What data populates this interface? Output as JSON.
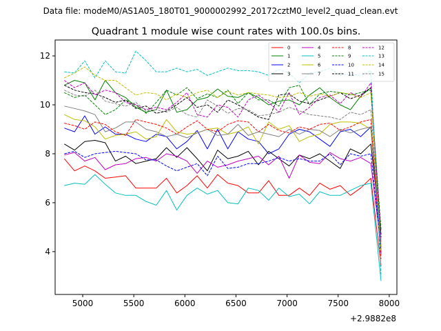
{
  "header": {
    "datafile": "Data file: modeM0/AS1A05_180T01_9000002992_20172cztM0_level2_quad_clean.evt"
  },
  "chart_data": {
    "type": "line",
    "title": "Quadrant 1 module wise count rates with 100.0s bins.",
    "xlabel": "",
    "ylabel": "",
    "x_offset_label": "+2.9882e8",
    "xlim": [
      4730,
      8075
    ],
    "ylim": [
      2.25,
      12.65
    ],
    "xticks": [
      5000,
      5500,
      6000,
      6500,
      7000,
      7500,
      8000
    ],
    "yticks": [
      4,
      6,
      8,
      10,
      12
    ],
    "legend_position": "upper right",
    "x": [
      4820,
      4920,
      5020,
      5120,
      5220,
      5320,
      5420,
      5520,
      5620,
      5720,
      5820,
      5920,
      6020,
      6120,
      6220,
      6320,
      6420,
      6520,
      6620,
      6720,
      6820,
      6920,
      7020,
      7120,
      7220,
      7320,
      7420,
      7520,
      7620,
      7720,
      7820,
      7920
    ],
    "series": [
      {
        "name": "0",
        "color": "#ff0000",
        "dash": "solid",
        "values": [
          7.8,
          7.3,
          7.5,
          7.3,
          7.0,
          7.05,
          7.1,
          6.6,
          6.6,
          6.6,
          7.0,
          6.4,
          6.7,
          7.1,
          6.6,
          7.15,
          6.8,
          6.7,
          6.4,
          6.4,
          6.9,
          6.3,
          6.3,
          6.6,
          6.3,
          6.8,
          6.55,
          6.7,
          6.3,
          6.6,
          7.0,
          3.4
        ]
      },
      {
        "name": "1",
        "color": "#008000",
        "dash": "solid",
        "values": [
          10.8,
          11.0,
          10.9,
          10.2,
          11.0,
          10.5,
          10.3,
          9.9,
          9.7,
          9.8,
          10.6,
          9.7,
          9.8,
          10.2,
          10.3,
          10.65,
          10.35,
          10.3,
          10.5,
          10.3,
          10.0,
          10.15,
          10.2,
          10.0,
          10.4,
          10.7,
          10.3,
          10.0,
          9.8,
          10.35,
          10.7,
          4.0
        ]
      },
      {
        "name": "2",
        "color": "#0000ff",
        "dash": "solid",
        "values": [
          9.05,
          8.9,
          9.55,
          8.8,
          9.1,
          8.8,
          8.8,
          8.6,
          8.5,
          8.8,
          8.7,
          8.2,
          8.5,
          8.95,
          8.2,
          9.0,
          8.2,
          8.9,
          8.6,
          8.5,
          8.0,
          8.2,
          8.8,
          9.0,
          8.9,
          8.6,
          8.3,
          8.9,
          9.0,
          8.7,
          9.1,
          3.9
        ]
      },
      {
        "name": "3",
        "color": "#000000",
        "dash": "solid",
        "values": [
          8.4,
          8.15,
          8.5,
          8.55,
          8.45,
          7.7,
          7.9,
          7.6,
          7.7,
          7.8,
          8.25,
          7.85,
          8.25,
          7.8,
          7.3,
          8.15,
          7.8,
          7.9,
          8.1,
          7.55,
          8.1,
          7.8,
          7.5,
          7.95,
          7.8,
          8.0,
          7.7,
          7.4,
          8.2,
          8.0,
          8.4,
          4.7
        ]
      },
      {
        "name": "4",
        "color": "#c000c0",
        "dash": "solid",
        "values": [
          7.95,
          8.05,
          7.7,
          7.85,
          7.35,
          7.55,
          7.6,
          7.8,
          7.85,
          7.7,
          8.0,
          7.9,
          7.7,
          7.2,
          7.7,
          7.45,
          7.55,
          7.7,
          7.8,
          7.9,
          7.55,
          7.9,
          7.0,
          7.95,
          7.65,
          7.6,
          8.05,
          7.8,
          7.7,
          7.85,
          7.6,
          4.2
        ]
      },
      {
        "name": "5",
        "color": "#00bfbf",
        "dash": "solid",
        "values": [
          6.7,
          6.8,
          6.75,
          7.15,
          6.75,
          6.4,
          6.3,
          6.3,
          6.05,
          5.9,
          6.5,
          5.7,
          6.3,
          6.6,
          6.35,
          6.5,
          6.0,
          5.95,
          6.6,
          6.5,
          6.1,
          6.6,
          6.25,
          6.35,
          5.95,
          6.45,
          6.3,
          6.3,
          6.5,
          6.7,
          6.8,
          2.8
        ]
      },
      {
        "name": "6",
        "color": "#bfbf00",
        "dash": "solid",
        "values": [
          9.6,
          9.4,
          9.35,
          9.1,
          8.6,
          8.75,
          8.8,
          8.9,
          8.6,
          8.7,
          9.4,
          8.9,
          8.8,
          8.85,
          9.0,
          9.05,
          8.8,
          8.9,
          9.1,
          8.4,
          9.3,
          9.0,
          9.15,
          8.5,
          8.7,
          8.8,
          9.2,
          9.3,
          9.3,
          9.25,
          9.0,
          4.4
        ]
      },
      {
        "name": "7",
        "color": "#808080",
        "dash": "solid",
        "values": [
          9.95,
          9.85,
          9.75,
          9.6,
          8.9,
          9.05,
          9.3,
          9.3,
          9.0,
          8.9,
          8.7,
          8.8,
          8.65,
          8.85,
          9.0,
          8.75,
          8.8,
          9.2,
          8.75,
          8.9,
          8.8,
          8.7,
          9.0,
          8.8,
          9.0,
          8.95,
          8.7,
          9.0,
          8.85,
          9.0,
          9.1,
          4.5
        ]
      },
      {
        "name": "8",
        "color": "#ff0000",
        "dash": "dashed",
        "values": [
          9.25,
          9.15,
          9.0,
          9.3,
          9.2,
          8.9,
          8.75,
          9.4,
          9.3,
          9.2,
          9.05,
          8.8,
          9.1,
          9.35,
          9.0,
          8.9,
          9.2,
          9.35,
          9.3,
          8.9,
          9.2,
          8.95,
          8.85,
          9.1,
          9.0,
          9.2,
          9.25,
          8.95,
          9.1,
          9.3,
          9.4,
          3.7
        ]
      },
      {
        "name": "9",
        "color": "#008000",
        "dash": "dashed",
        "values": [
          10.5,
          10.3,
          10.4,
          10.0,
          9.6,
          9.8,
          10.2,
          10.0,
          9.65,
          10.1,
          10.6,
          10.4,
          10.7,
          10.25,
          10.45,
          10.3,
          10.6,
          10.05,
          10.5,
          10.2,
          10.2,
          9.95,
          10.7,
          10.8,
          10.0,
          10.45,
          10.55,
          10.5,
          10.4,
          10.5,
          10.6,
          4.9
        ]
      },
      {
        "name": "10",
        "color": "#0000ff",
        "dash": "dashed",
        "values": [
          8.0,
          8.1,
          7.85,
          8.0,
          8.05,
          8.1,
          8.05,
          8.0,
          7.75,
          7.75,
          7.5,
          7.3,
          7.45,
          7.6,
          7.1,
          7.9,
          7.4,
          7.45,
          7.6,
          7.6,
          7.7,
          7.85,
          7.7,
          7.8,
          7.7,
          7.7,
          8.0,
          7.55,
          8.0,
          7.9,
          8.0,
          4.1
        ]
      },
      {
        "name": "11",
        "color": "#000000",
        "dash": "dashed",
        "values": [
          10.8,
          10.6,
          10.5,
          10.45,
          10.3,
          10.1,
          10.2,
          9.85,
          9.95,
          9.65,
          9.75,
          10.0,
          10.3,
          9.9,
          10.0,
          9.7,
          10.2,
          10.0,
          9.75,
          9.5,
          9.4,
          10.4,
          10.45,
          10.15,
          10.05,
          10.2,
          10.35,
          10.5,
          10.25,
          10.4,
          10.7,
          4.6
        ]
      },
      {
        "name": "12",
        "color": "#c000c0",
        "dash": "dashed",
        "values": [
          11.0,
          10.7,
          10.9,
          10.4,
          10.6,
          10.5,
          10.1,
          10.0,
          9.8,
          9.9,
          9.8,
          10.1,
          10.5,
          9.6,
          9.5,
          10.0,
          9.9,
          9.5,
          10.2,
          10.4,
          10.1,
          9.7,
          10.5,
          9.6,
          9.9,
          10.3,
          10.4,
          10.05,
          10.5,
          10.3,
          10.9,
          4.3
        ]
      },
      {
        "name": "13",
        "color": "#00bfbf",
        "dash": "dashed",
        "values": [
          11.35,
          11.3,
          11.8,
          11.1,
          11.8,
          11.35,
          11.3,
          12.2,
          11.8,
          11.35,
          11.35,
          11.5,
          11.35,
          11.45,
          11.2,
          11.35,
          11.5,
          11.4,
          11.4,
          11.35,
          11.2,
          11.45,
          11.3,
          10.9,
          11.3,
          11.35,
          11.5,
          11.2,
          11.25,
          11.2,
          11.4,
          3.0
        ]
      },
      {
        "name": "14",
        "color": "#bfbf00",
        "dash": "dashed",
        "values": [
          11.1,
          11.3,
          11.55,
          11.2,
          11.0,
          11.0,
          10.7,
          10.4,
          10.5,
          10.45,
          10.2,
          10.45,
          10.3,
          10.5,
          10.6,
          10.3,
          10.55,
          10.4,
          10.5,
          10.45,
          10.4,
          10.3,
          10.35,
          10.5,
          10.35,
          10.45,
          10.35,
          10.5,
          10.45,
          10.3,
          10.5,
          4.0
        ]
      },
      {
        "name": "15",
        "color": "#808080",
        "dash": "dashed",
        "values": [
          10.6,
          10.4,
          10.35,
          10.6,
          10.15,
          10.05,
          9.95,
          10.1,
          9.75,
          9.8,
          9.7,
          9.9,
          9.6,
          9.5,
          10.2,
          9.95,
          9.65,
          9.85,
          9.8,
          9.55,
          9.6,
          9.7,
          9.9,
          9.75,
          9.6,
          9.55,
          9.5,
          9.4,
          9.7,
          9.6,
          9.8,
          4.2
        ]
      }
    ]
  }
}
